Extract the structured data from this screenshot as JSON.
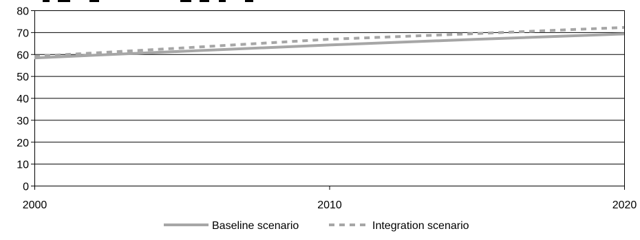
{
  "chart_data": {
    "type": "line",
    "title_partial": "...ng...        ...(p...   p)...",
    "xlabel": "",
    "ylabel": "",
    "xlim": [
      2000,
      2020
    ],
    "ylim": [
      0,
      80
    ],
    "x_ticks": [
      2000,
      2010,
      2020
    ],
    "y_ticks": [
      0,
      10,
      20,
      30,
      40,
      50,
      60,
      70,
      80
    ],
    "grid": "horizontal",
    "legend_position": "bottom",
    "x": [
      2000,
      2005,
      2010,
      2015,
      2020
    ],
    "series": [
      {
        "name": "Baseline scenario",
        "values": [
          58.3,
          61.3,
          64.2,
          66.8,
          69.2
        ],
        "color": "#a6a6a6",
        "style": "solid"
      },
      {
        "name": "Integration scenario",
        "values": [
          59.0,
          62.8,
          66.8,
          69.4,
          72.2
        ],
        "color": "#a6a6a6",
        "style": "dashed"
      }
    ],
    "axis_color": "#000000",
    "grid_color": "#000000"
  }
}
